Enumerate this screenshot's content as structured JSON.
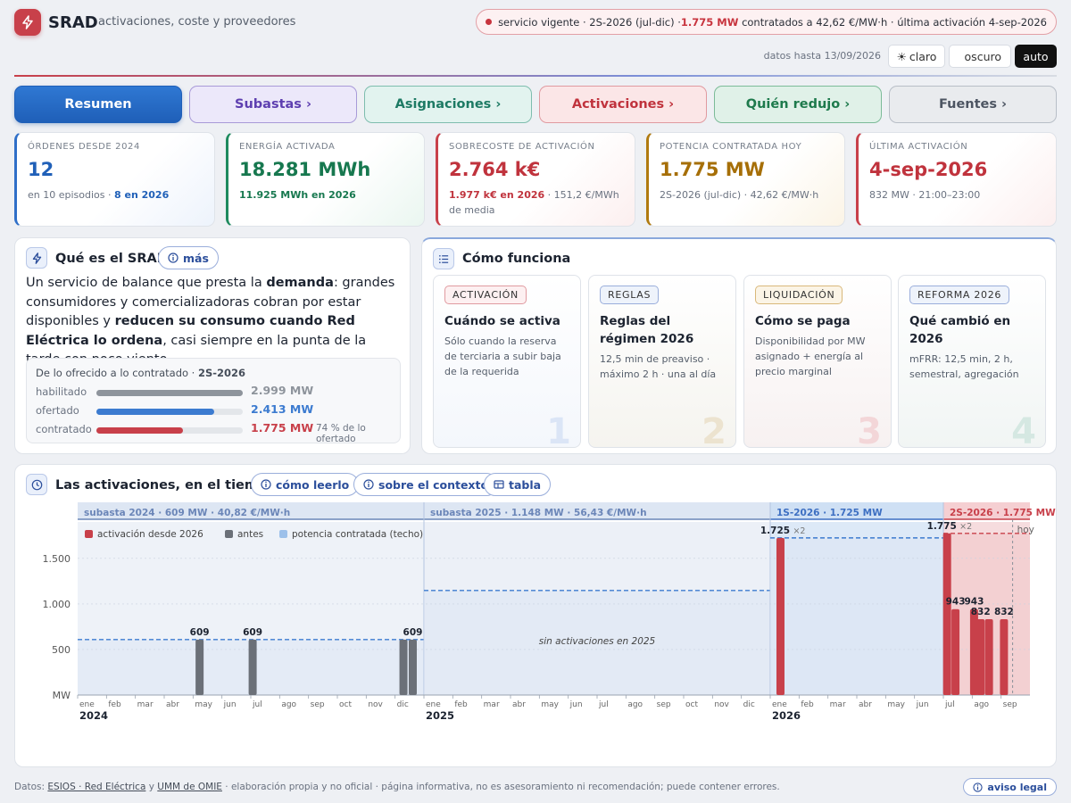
{
  "header": {
    "brand": "SRAD",
    "subtitle": "activaciones, coste y proveedores",
    "status": {
      "pre": "servicio vigente · 2S-2026 (jul-dic) · ",
      "highlight": "1.775 MW",
      "post": " contratados a 42,62 €/MW·h · última activación 4-sep-2026"
    },
    "data_until": "datos hasta 13/09/2026",
    "theme": {
      "light": "claro",
      "dark": "oscuro",
      "auto": "auto"
    }
  },
  "tabs": [
    {
      "label": "Resumen",
      "active": true
    },
    {
      "label": "Subastas ›"
    },
    {
      "label": "Asignaciones ›"
    },
    {
      "label": "Activaciones ›"
    },
    {
      "label": "Quién redujo ›"
    },
    {
      "label": "Fuentes ›"
    }
  ],
  "kpis": [
    {
      "label": "ÓRDENES DESDE 2024",
      "value": "12",
      "sub_pre": "en 10 episodios · ",
      "sub_bold": "8 en 2026",
      "sub_post": ""
    },
    {
      "label": "ENERGÍA ACTIVADA",
      "value": "18.281 MWh",
      "sub_pre": "",
      "sub_bold": "11.925 MWh en 2026",
      "sub_post": ""
    },
    {
      "label": "SOBRECOSTE DE ACTIVACIÓN",
      "value": "2.764 k€",
      "sub_pre": "",
      "sub_bold": "1.977 k€ en 2026",
      "sub_post": " · 151,2 €/MWh de media"
    },
    {
      "label": "POTENCIA CONTRATADA HOY",
      "value": "1.775 MW",
      "sub_pre": "2S-2026 (jul-dic) · 42,62 €/MW·h",
      "sub_bold": "",
      "sub_post": ""
    },
    {
      "label": "ÚLTIMA ACTIVACIÓN",
      "value": "4-sep-2026",
      "sub_pre": "832 MW · 21:00–23:00",
      "sub_bold": "",
      "sub_post": ""
    }
  ],
  "what": {
    "title": "Qué es el SRAD",
    "more": "más",
    "desc": [
      "Un servicio de balance que presta la ",
      "demanda",
      ": grandes consumidores y comercializadoras cobran por estar disponibles y ",
      "reducen su consumo cuando Red Eléctrica lo ordena",
      ", casi siempre en la punta de la tarde con poco viento."
    ],
    "offer": {
      "title_pre": "De lo ofrecido a lo contratado · ",
      "title_bold": "2S-2026",
      "max": 2999,
      "rows": [
        {
          "label": "habilitado",
          "mw": 2999,
          "value": "2.999 MW",
          "color": "#8e949c",
          "note": ""
        },
        {
          "label": "ofertado",
          "mw": 2413,
          "value": "2.413 MW",
          "color": "#3c7bd0",
          "note": ""
        },
        {
          "label": "contratado",
          "mw": 1775,
          "value": "1.775 MW",
          "color": "#c8404a",
          "note": "74 % de lo ofertado"
        }
      ]
    }
  },
  "how": {
    "title": "Cómo funciona",
    "steps": [
      {
        "tag": "ACTIVACIÓN",
        "title": "Cuándo se activa",
        "desc": "Sólo cuando la reserva de terciaria a subir baja de la requerida",
        "num": "1"
      },
      {
        "tag": "REGLAS",
        "title": "Reglas del régimen 2026",
        "desc": "12,5 min de preaviso · máximo 2 h · una al día",
        "num": "2"
      },
      {
        "tag": "LIQUIDACIÓN",
        "title": "Cómo se paga",
        "desc": "Disponibilidad por MW asignado + energía al precio marginal",
        "num": "3"
      },
      {
        "tag": "REFORMA 2026",
        "title": "Qué cambió en 2026",
        "desc": "mFRR: 12,5 min, 2 h, semestral, agregación",
        "num": "4"
      }
    ]
  },
  "timeline": {
    "title": "Las activaciones, en el tiempo",
    "buttons": [
      "cómo leerlo",
      "sobre el contexto",
      "tabla"
    ]
  },
  "chart_data": {
    "type": "bar",
    "ylabel": "MW",
    "ylim": [
      0,
      1900
    ],
    "yticks": [
      0,
      500,
      1000,
      1500
    ],
    "ytick_labels": [
      "MW",
      "500",
      "1.000",
      "1.500"
    ],
    "x_start": "2024-01",
    "x_end": "2026-10",
    "month_labels": [
      "ene",
      "feb",
      "mar",
      "abr",
      "may",
      "jun",
      "jul",
      "ago",
      "sep",
      "oct",
      "nov",
      "dic"
    ],
    "year_labels": [
      "2024",
      "2025",
      "2026"
    ],
    "legend": [
      {
        "label": "activación desde 2026",
        "color": "#c8404a"
      },
      {
        "label": "antes",
        "color": "#6b7078"
      },
      {
        "label": "potencia contratada (techo)",
        "color": "#9cc0ea"
      }
    ],
    "periods": [
      {
        "label": "subasta 2024 · 609 MW · 40,82 €/MW·h",
        "start": "2024-01",
        "end": "2025-01",
        "mw": 609,
        "color": "#6b86b8"
      },
      {
        "label": "subasta 2025 · 1.148 MW · 56,43 €/MW·h",
        "start": "2025-01",
        "end": "2026-01",
        "mw": 1148,
        "color": "#6b86b8"
      },
      {
        "label": "1S-2026 · 1.725 MW",
        "start": "2026-01",
        "end": "2026-07",
        "mw": 1725,
        "color": "#3d6fc2"
      },
      {
        "label": "2S-2026 · 1.775 MW",
        "start": "2026-07",
        "end": "2026-10",
        "mw": 1775,
        "color": "#c8404a"
      }
    ],
    "series": [
      {
        "name": "antes",
        "points": [
          {
            "date": "2024-05-08",
            "mw": 609,
            "label": "609"
          },
          {
            "date": "2024-07-03",
            "mw": 609,
            "label": "609"
          },
          {
            "date": "2024-12-10",
            "mw": 609,
            "label": ""
          },
          {
            "date": "2024-12-20",
            "mw": 609,
            "label": "609"
          }
        ]
      },
      {
        "name": "activación desde 2026",
        "points": [
          {
            "date": "2026-01-12",
            "mw": 1725,
            "label": "1.725",
            "mult": "×2"
          },
          {
            "date": "2026-07-05",
            "mw": 1775,
            "label": "1.775",
            "mult": "×2"
          },
          {
            "date": "2026-07-14",
            "mw": 943,
            "label": "943"
          },
          {
            "date": "2026-08-03",
            "mw": 943,
            "label": "943"
          },
          {
            "date": "2026-08-10",
            "mw": 832,
            "label": "832"
          },
          {
            "date": "2026-08-19",
            "mw": 832,
            "label": ""
          },
          {
            "date": "2026-09-04",
            "mw": 832,
            "label": "832"
          }
        ]
      }
    ],
    "annotations": [
      {
        "text": "sin activaciones en 2025",
        "date": "2025-07-01",
        "mw": 560
      },
      {
        "text": "hoy",
        "date": "2026-09-13"
      }
    ]
  },
  "footer": {
    "pre": "Datos: ",
    "link1": "ESIOS · Red Eléctrica",
    "mid": " y ",
    "link2": "UMM de OMIE",
    "post": " · elaboración propia y no oficial · página informativa, no es asesoramiento ni recomendación; puede contener errores.",
    "legal": "aviso legal"
  }
}
